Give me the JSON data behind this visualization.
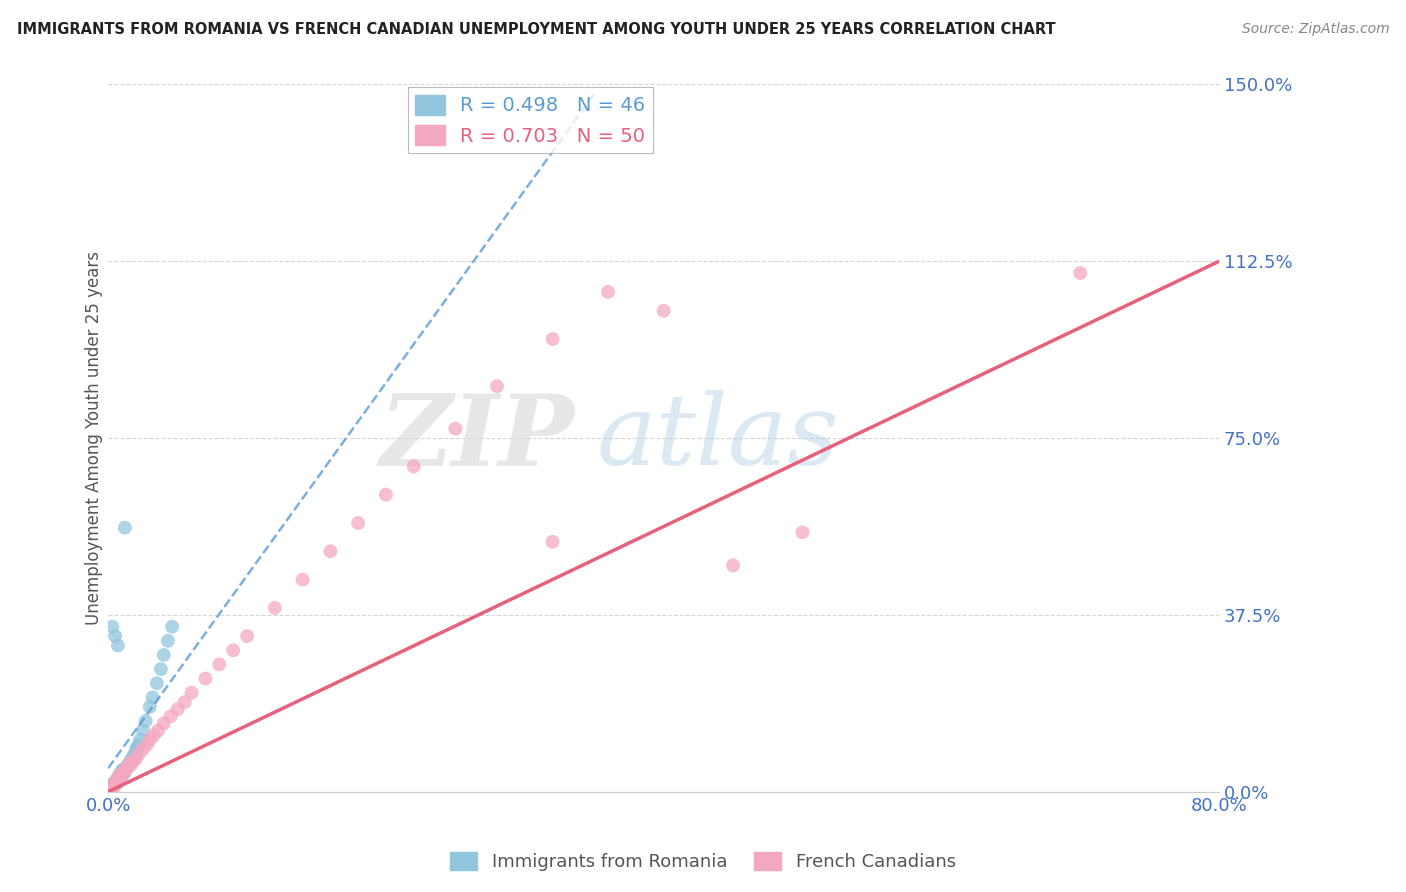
{
  "title": "IMMIGRANTS FROM ROMANIA VS FRENCH CANADIAN UNEMPLOYMENT AMONG YOUTH UNDER 25 YEARS CORRELATION CHART",
  "source": "Source: ZipAtlas.com",
  "ylabel": "Unemployment Among Youth under 25 years",
  "xlim": [
    0,
    0.8
  ],
  "ylim": [
    0,
    1.5
  ],
  "yticks": [
    0.0,
    0.375,
    0.75,
    1.125,
    1.5
  ],
  "ytick_labels": [
    "0.0%",
    "37.5%",
    "75.0%",
    "112.5%",
    "150.0%"
  ],
  "xtick_labels_show": [
    "0.0%",
    "80.0%"
  ],
  "xtick_positions_show": [
    0.0,
    0.8
  ],
  "legend_label1": "Immigrants from Romania",
  "legend_label2": "French Canadians",
  "R1": 0.498,
  "N1": 46,
  "R2": 0.703,
  "N2": 50,
  "color1": "#92c5de",
  "color2": "#f4a8bf",
  "trendline1_color": "#5b9bd5",
  "trendline2_color": "#e8607a",
  "watermark_zip": "ZIP",
  "watermark_atlas": "atlas",
  "background_color": "#ffffff",
  "scatter1_x": [
    0.001,
    0.002,
    0.002,
    0.003,
    0.003,
    0.004,
    0.004,
    0.005,
    0.005,
    0.006,
    0.006,
    0.007,
    0.007,
    0.008,
    0.008,
    0.009,
    0.009,
    0.01,
    0.01,
    0.011,
    0.011,
    0.012,
    0.013,
    0.014,
    0.015,
    0.016,
    0.017,
    0.018,
    0.019,
    0.02,
    0.021,
    0.022,
    0.023,
    0.025,
    0.027,
    0.03,
    0.032,
    0.035,
    0.038,
    0.04,
    0.043,
    0.046,
    0.003,
    0.005,
    0.007,
    0.012
  ],
  "scatter1_y": [
    0.005,
    0.008,
    0.012,
    0.01,
    0.015,
    0.012,
    0.018,
    0.015,
    0.02,
    0.018,
    0.025,
    0.02,
    0.03,
    0.025,
    0.035,
    0.03,
    0.04,
    0.035,
    0.045,
    0.038,
    0.048,
    0.042,
    0.05,
    0.055,
    0.06,
    0.065,
    0.07,
    0.075,
    0.08,
    0.09,
    0.095,
    0.1,
    0.11,
    0.13,
    0.15,
    0.18,
    0.2,
    0.23,
    0.26,
    0.29,
    0.32,
    0.35,
    0.35,
    0.33,
    0.31,
    0.56
  ],
  "scatter2_x": [
    0.001,
    0.002,
    0.003,
    0.003,
    0.004,
    0.005,
    0.005,
    0.006,
    0.007,
    0.007,
    0.008,
    0.009,
    0.01,
    0.011,
    0.012,
    0.013,
    0.015,
    0.016,
    0.018,
    0.02,
    0.022,
    0.025,
    0.028,
    0.03,
    0.033,
    0.036,
    0.04,
    0.045,
    0.05,
    0.055,
    0.06,
    0.07,
    0.08,
    0.09,
    0.1,
    0.12,
    0.14,
    0.16,
    0.18,
    0.2,
    0.22,
    0.25,
    0.28,
    0.32,
    0.36,
    0.4,
    0.45,
    0.5,
    0.7,
    0.32
  ],
  "scatter2_y": [
    0.003,
    0.005,
    0.008,
    0.012,
    0.01,
    0.015,
    0.02,
    0.018,
    0.025,
    0.03,
    0.028,
    0.035,
    0.04,
    0.038,
    0.045,
    0.05,
    0.06,
    0.055,
    0.065,
    0.07,
    0.08,
    0.09,
    0.1,
    0.11,
    0.12,
    0.13,
    0.145,
    0.16,
    0.175,
    0.19,
    0.21,
    0.24,
    0.27,
    0.3,
    0.33,
    0.39,
    0.45,
    0.51,
    0.57,
    0.63,
    0.69,
    0.77,
    0.86,
    0.96,
    1.06,
    1.02,
    0.48,
    0.55,
    1.1,
    0.53
  ],
  "trendline2_x0": 0.0,
  "trendline2_y0": 0.0,
  "trendline2_x1": 0.8,
  "trendline2_y1": 1.125,
  "trendline1_x0": 0.0,
  "trendline1_y0": 0.05,
  "trendline1_x1": 0.35,
  "trendline1_y1": 1.48
}
